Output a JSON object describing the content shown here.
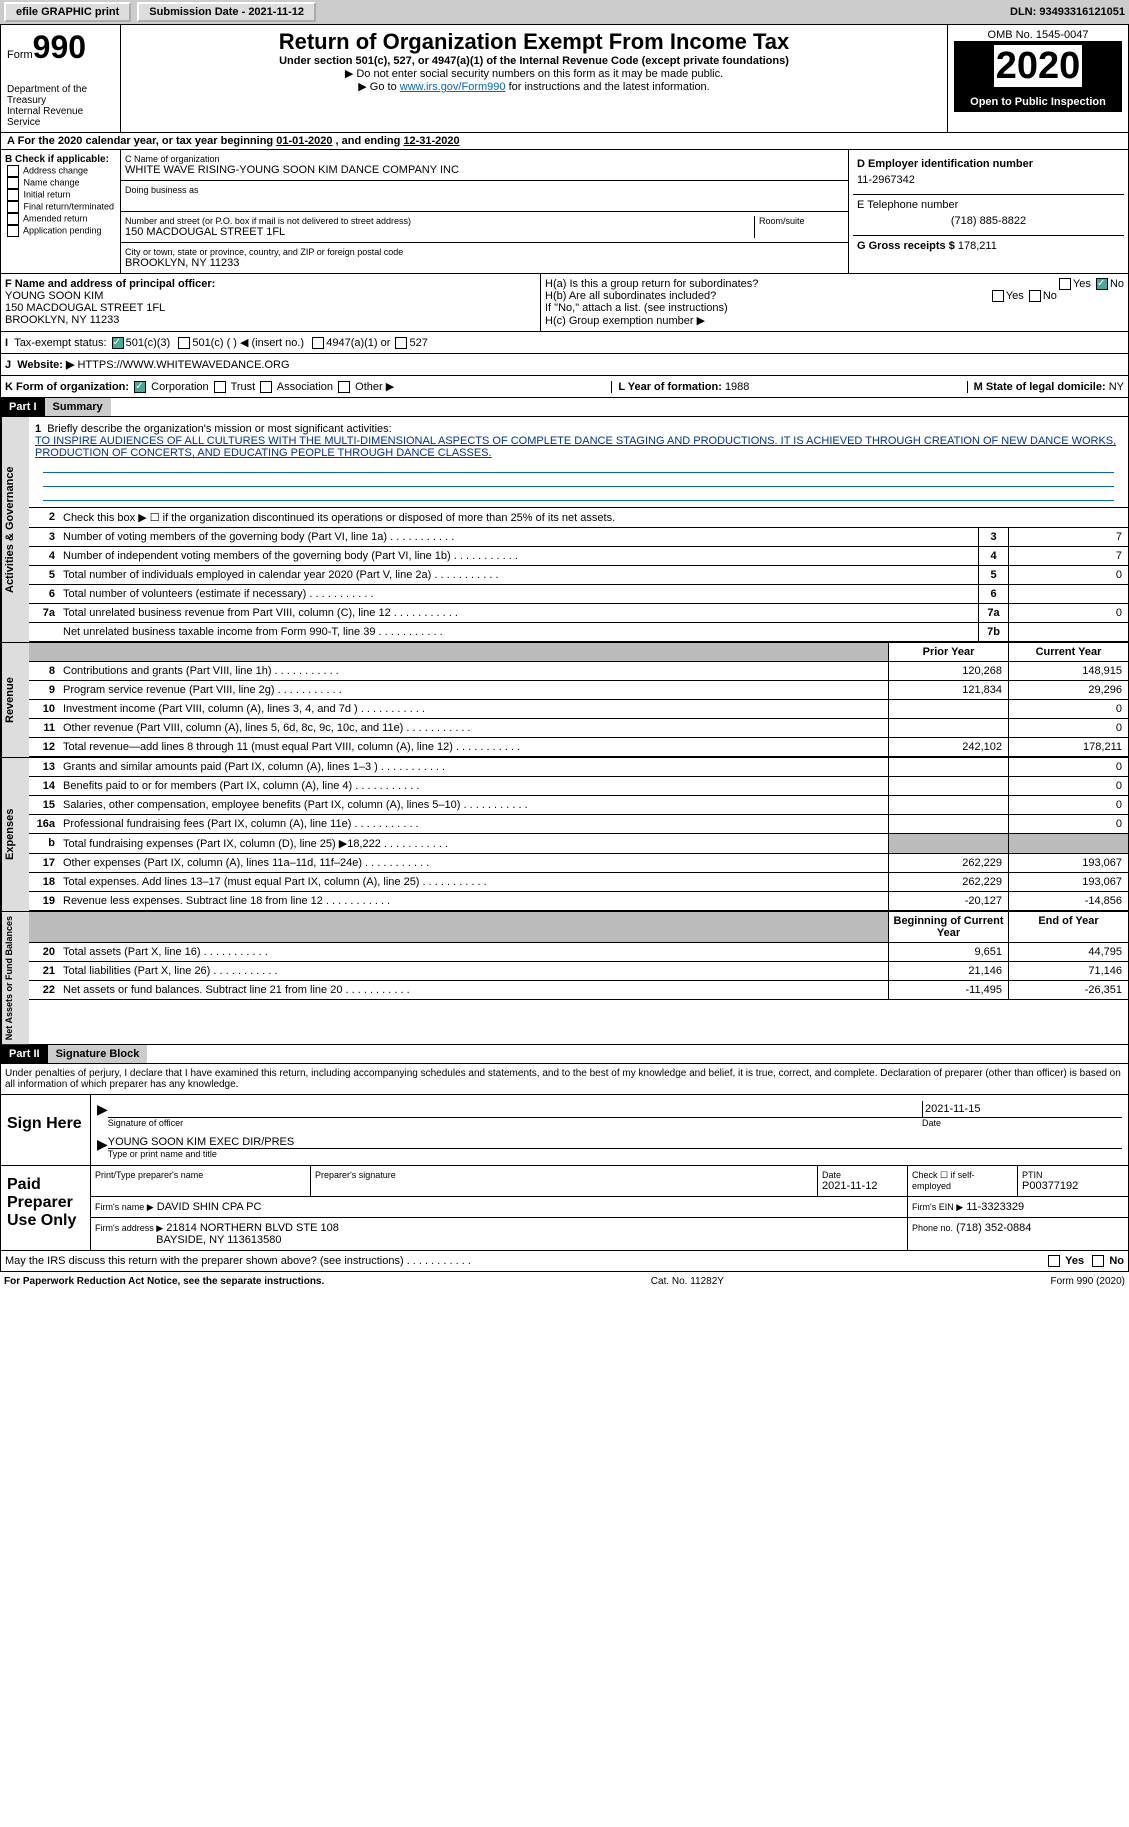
{
  "top": {
    "efile": "efile GRAPHIC print",
    "submission_label": "Submission Date - 2021-11-12",
    "dln_label": "DLN: 93493316121051"
  },
  "header": {
    "form_prefix": "Form",
    "form_no": "990",
    "dept": "Department of the Treasury\nInternal Revenue Service",
    "title": "Return of Organization Exempt From Income Tax",
    "sub1": "Under section 501(c), 527, or 4947(a)(1) of the Internal Revenue Code (except private foundations)",
    "sub2": "▶ Do not enter social security numbers on this form as it may be made public.",
    "sub3_a": "▶ Go to ",
    "sub3_link": "www.irs.gov/Form990",
    "sub3_b": " for instructions and the latest information.",
    "omb": "OMB No. 1545-0047",
    "year": "2020",
    "open": "Open to Public Inspection"
  },
  "A": {
    "text_a": "For the 2020 calendar year, or tax year beginning ",
    "begin": "01-01-2020",
    "mid": " , and ending ",
    "end": "12-31-2020"
  },
  "B": {
    "label": "B Check if applicable:",
    "opts": [
      "Address change",
      "Name change",
      "Initial return",
      "Final return/terminated",
      "Amended return",
      "Application pending"
    ]
  },
  "C": {
    "name_lbl": "C Name of organization",
    "name": "WHITE WAVE RISING-YOUNG SOON KIM DANCE COMPANY INC",
    "dba_lbl": "Doing business as",
    "addr_lbl": "Number and street (or P.O. box if mail is not delivered to street address)",
    "room_lbl": "Room/suite",
    "addr": "150 MACDOUGAL STREET 1FL",
    "city_lbl": "City or town, state or province, country, and ZIP or foreign postal code",
    "city": "BROOKLYN, NY  11233"
  },
  "D": {
    "lbl": "D Employer identification number",
    "val": "11-2967342"
  },
  "E": {
    "lbl": "E Telephone number",
    "val": "(718) 885-8822"
  },
  "G": {
    "lbl": "G Gross receipts $",
    "val": "178,211"
  },
  "F": {
    "lbl": "F  Name and address of principal officer:",
    "name": "YOUNG SOON KIM",
    "addr": "150 MACDOUGAL STREET 1FL",
    "city": "BROOKLYN, NY  11233"
  },
  "H": {
    "ha": "H(a)  Is this a group return for subordinates?",
    "hb": "H(b)  Are all subordinates included?",
    "hb_note": "If \"No,\" attach a list. (see instructions)",
    "hc": "H(c)  Group exemption number ▶",
    "yes": "Yes",
    "no": "No"
  },
  "I": {
    "lbl": "Tax-exempt status:",
    "o1": "501(c)(3)",
    "o2": "501(c) (  ) ◀ (insert no.)",
    "o3": "4947(a)(1) or",
    "o4": "527"
  },
  "J": {
    "lbl": "Website: ▶",
    "val": "HTTPS://WWW.WHITEWAVEDANCE.ORG"
  },
  "K": {
    "lbl": "K Form of organization:",
    "corp": "Corporation",
    "trust": "Trust",
    "assoc": "Association",
    "other": "Other ▶"
  },
  "L": {
    "lbl": "L Year of formation:",
    "val": "1988"
  },
  "M": {
    "lbl": "M State of legal domicile:",
    "val": "NY"
  },
  "part1": {
    "hdr": "Part I",
    "title": "Summary",
    "q1": "Briefly describe the organization's mission or most significant activities:",
    "mission": "TO INSPIRE AUDIENCES OF ALL CULTURES WITH THE MULTI-DIMENSIONAL ASPECTS OF COMPLETE DANCE STAGING AND PRODUCTIONS. IT IS ACHIEVED THROUGH CREATION OF NEW DANCE WORKS, PRODUCTION OF CONCERTS, AND EDUCATING PEOPLE THROUGH DANCE CLASSES.",
    "q2": "Check this box ▶ ☐  if the organization discontinued its operations or disposed of more than 25% of its net assets.",
    "sides": {
      "ag": "Activities & Governance",
      "rev": "Revenue",
      "exp": "Expenses",
      "net": "Net Assets or Fund Balances"
    },
    "gov_rows": [
      {
        "n": "3",
        "d": "Number of voting members of the governing body (Part VI, line 1a)",
        "b": "3",
        "v": "7"
      },
      {
        "n": "4",
        "d": "Number of independent voting members of the governing body (Part VI, line 1b)",
        "b": "4",
        "v": "7"
      },
      {
        "n": "5",
        "d": "Total number of individuals employed in calendar year 2020 (Part V, line 2a)",
        "b": "5",
        "v": "0"
      },
      {
        "n": "6",
        "d": "Total number of volunteers (estimate if necessary)",
        "b": "6",
        "v": ""
      },
      {
        "n": "7a",
        "d": "Total unrelated business revenue from Part VIII, column (C), line 12",
        "b": "7a",
        "v": "0"
      },
      {
        "n": "",
        "d": "Net unrelated business taxable income from Form 990-T, line 39",
        "b": "7b",
        "v": ""
      }
    ],
    "col_prior": "Prior Year",
    "col_curr": "Current Year",
    "rev_rows": [
      {
        "n": "8",
        "d": "Contributions and grants (Part VIII, line 1h)",
        "p": "120,268",
        "c": "148,915"
      },
      {
        "n": "9",
        "d": "Program service revenue (Part VIII, line 2g)",
        "p": "121,834",
        "c": "29,296"
      },
      {
        "n": "10",
        "d": "Investment income (Part VIII, column (A), lines 3, 4, and 7d )",
        "p": "",
        "c": "0"
      },
      {
        "n": "11",
        "d": "Other revenue (Part VIII, column (A), lines 5, 6d, 8c, 9c, 10c, and 11e)",
        "p": "",
        "c": "0"
      },
      {
        "n": "12",
        "d": "Total revenue—add lines 8 through 11 (must equal Part VIII, column (A), line 12)",
        "p": "242,102",
        "c": "178,211"
      }
    ],
    "exp_rows": [
      {
        "n": "13",
        "d": "Grants and similar amounts paid (Part IX, column (A), lines 1–3 )",
        "p": "",
        "c": "0"
      },
      {
        "n": "14",
        "d": "Benefits paid to or for members (Part IX, column (A), line 4)",
        "p": "",
        "c": "0"
      },
      {
        "n": "15",
        "d": "Salaries, other compensation, employee benefits (Part IX, column (A), lines 5–10)",
        "p": "",
        "c": "0"
      },
      {
        "n": "16a",
        "d": "Professional fundraising fees (Part IX, column (A), line 11e)",
        "p": "",
        "c": "0"
      },
      {
        "n": "b",
        "d": "Total fundraising expenses (Part IX, column (D), line 25) ▶18,222",
        "p": "GREY",
        "c": "GREY"
      },
      {
        "n": "17",
        "d": "Other expenses (Part IX, column (A), lines 11a–11d, 11f–24e)",
        "p": "262,229",
        "c": "193,067"
      },
      {
        "n": "18",
        "d": "Total expenses. Add lines 13–17 (must equal Part IX, column (A), line 25)",
        "p": "262,229",
        "c": "193,067"
      },
      {
        "n": "19",
        "d": "Revenue less expenses. Subtract line 18 from line 12",
        "p": "-20,127",
        "c": "-14,856"
      }
    ],
    "col_bcy": "Beginning of Current Year",
    "col_eoy": "End of Year",
    "net_rows": [
      {
        "n": "20",
        "d": "Total assets (Part X, line 16)",
        "p": "9,651",
        "c": "44,795"
      },
      {
        "n": "21",
        "d": "Total liabilities (Part X, line 26)",
        "p": "21,146",
        "c": "71,146"
      },
      {
        "n": "22",
        "d": "Net assets or fund balances. Subtract line 21 from line 20",
        "p": "-11,495",
        "c": "-26,351"
      }
    ]
  },
  "part2": {
    "hdr": "Part II",
    "title": "Signature Block",
    "decl": "Under penalties of perjury, I declare that I have examined this return, including accompanying schedules and statements, and to the best of my knowledge and belief, it is true, correct, and complete. Declaration of preparer (other than officer) is based on all information of which preparer has any knowledge.",
    "sign_here": "Sign Here",
    "sig_officer": "Signature of officer",
    "sig_date": "2021-11-15",
    "date_lbl": "Date",
    "officer_name": "YOUNG SOON KIM  EXEC DIR/PRES",
    "type_name": "Type or print name and title",
    "paid": "Paid Preparer Use Only",
    "prep_name_lbl": "Print/Type preparer's name",
    "prep_sig_lbl": "Preparer's signature",
    "prep_date_lbl": "Date",
    "prep_date": "2021-11-12",
    "check_if": "Check ☐ if self-employed",
    "ptin_lbl": "PTIN",
    "ptin": "P00377192",
    "firm_name_lbl": "Firm's name   ▶",
    "firm_name": "DAVID SHIN CPA PC",
    "firm_ein_lbl": "Firm's EIN ▶",
    "firm_ein": "11-3323329",
    "firm_addr_lbl": "Firm's address ▶",
    "firm_addr": "21814 NORTHERN BLVD STE 108",
    "firm_city": "BAYSIDE, NY  113613580",
    "phone_lbl": "Phone no.",
    "phone": "(718) 352-0884",
    "discuss": "May the IRS discuss this return with the preparer shown above? (see instructions)"
  },
  "footer": {
    "pra": "For Paperwork Reduction Act Notice, see the separate instructions.",
    "cat": "Cat. No. 11282Y",
    "form": "Form 990 (2020)"
  },
  "colors": {
    "link": "#0066cc",
    "header_bg": "#000000",
    "grey": "#bbbbbb",
    "topbar": "#cccccc"
  }
}
